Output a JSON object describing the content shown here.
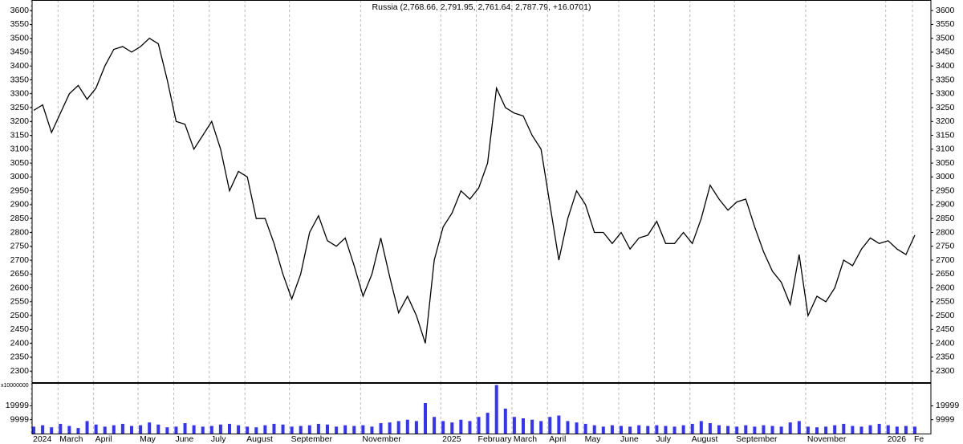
{
  "chart_data": [
    {
      "type": "line",
      "title": "Russia (2,768.66, 2,791.95, 2,761.64, 2,787.79, +16.0701)",
      "ylim": [
        2260,
        3638
      ],
      "yticks": [
        2300,
        2350,
        2400,
        2450,
        2500,
        2550,
        2600,
        2650,
        2700,
        2750,
        2800,
        2850,
        2900,
        2950,
        3000,
        3050,
        3100,
        3150,
        3200,
        3250,
        3300,
        3350,
        3400,
        3450,
        3500,
        3550,
        3600
      ],
      "grid": true,
      "series": [
        {
          "color": "#000000",
          "values": [
            3240,
            3260,
            3160,
            3230,
            3300,
            3330,
            3280,
            3320,
            3400,
            3460,
            3470,
            3450,
            3470,
            3500,
            3480,
            3350,
            3200,
            3190,
            3100,
            3150,
            3200,
            3100,
            2950,
            3020,
            3000,
            2850,
            2850,
            2760,
            2650,
            2560,
            2650,
            2800,
            2860,
            2770,
            2750,
            2780,
            2680,
            2570,
            2650,
            2780,
            2640,
            2510,
            2570,
            2500,
            2400,
            2700,
            2820,
            2870,
            2950,
            2920,
            2960,
            3050,
            3320,
            3250,
            3230,
            3220,
            3150,
            3100,
            2900,
            2700,
            2850,
            2950,
            2900,
            2800,
            2800,
            2760,
            2800,
            2740,
            2780,
            2790,
            2840,
            2760,
            2760,
            2800,
            2760,
            2850,
            2970,
            2920,
            2880,
            2910,
            2920,
            2820,
            2730,
            2660,
            2620,
            2540,
            2720,
            2500,
            2570,
            2550,
            2600,
            2700,
            2680,
            2740,
            2780,
            2760,
            2770,
            2740,
            2720,
            2790
          ]
        }
      ]
    },
    {
      "type": "bar",
      "y_unit_label": "x10000000",
      "categories": [
        "2024",
        null,
        null,
        "March",
        null,
        null,
        null,
        "April",
        null,
        null,
        null,
        null,
        "May",
        null,
        null,
        null,
        "June",
        null,
        null,
        null,
        "July",
        null,
        null,
        null,
        "August",
        null,
        null,
        null,
        null,
        "September",
        null,
        null,
        null,
        null,
        null,
        null,
        null,
        "November",
        null,
        null,
        null,
        null,
        null,
        null,
        null,
        null,
        "2025",
        null,
        null,
        null,
        "February",
        null,
        null,
        null,
        "March",
        null,
        null,
        null,
        "April",
        null,
        null,
        null,
        "May",
        null,
        null,
        null,
        "June",
        null,
        null,
        null,
        "July",
        null,
        null,
        null,
        "August",
        null,
        null,
        null,
        null,
        "September",
        null,
        null,
        null,
        null,
        null,
        null,
        null,
        "November",
        null,
        null,
        null,
        null,
        null,
        null,
        null,
        null,
        "2026",
        null,
        null,
        "Fe"
      ],
      "ylim": [
        0,
        36470
      ],
      "yticks": [
        9999,
        19999
      ],
      "grid": true,
      "color": "#3333ff",
      "values": [
        5000,
        6000,
        4500,
        7000,
        5500,
        4000,
        9000,
        6500,
        5000,
        6000,
        7000,
        5500,
        6000,
        8000,
        6500,
        4500,
        5000,
        7500,
        6000,
        5000,
        5500,
        6500,
        7000,
        6000,
        5000,
        4500,
        6000,
        7000,
        6500,
        5000,
        5500,
        6000,
        7000,
        6500,
        5000,
        6000,
        5500,
        6000,
        5000,
        7500,
        8000,
        9000,
        10000,
        9000,
        22000,
        12000,
        9000,
        8000,
        10000,
        9000,
        12000,
        15000,
        35000,
        18000,
        12000,
        11000,
        10000,
        9000,
        12000,
        13000,
        9000,
        8000,
        7000,
        6000,
        5000,
        6000,
        5500,
        5000,
        6000,
        5500,
        6000,
        5500,
        5000,
        6000,
        7000,
        9000,
        7500,
        6000,
        5500,
        5000,
        6000,
        5000,
        6000,
        5500,
        5000,
        8000,
        9000,
        5000,
        4500,
        5000,
        6000,
        7000,
        5500,
        5000,
        6000,
        7000,
        6000,
        5000,
        5500,
        5000
      ]
    }
  ]
}
